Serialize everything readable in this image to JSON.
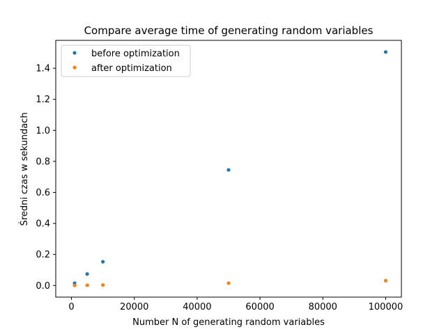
{
  "chart_data": {
    "type": "scatter",
    "title": "Compare average time of generating random variables",
    "xlabel": "Number N of generating random variables",
    "ylabel": "Średni czas w sekundach",
    "xlim": [
      -5000,
      105000
    ],
    "ylim": [
      -0.075,
      1.58
    ],
    "x_ticks": [
      0,
      20000,
      40000,
      60000,
      80000,
      100000
    ],
    "y_ticks": [
      0.0,
      0.2,
      0.4,
      0.6,
      0.8,
      1.0,
      1.2,
      1.4
    ],
    "grid": false,
    "legend_position": "upper-left",
    "series": [
      {
        "name": "before optimization",
        "color": "#1f77b4",
        "x": [
          1000,
          5000,
          10000,
          50000,
          100000
        ],
        "y": [
          0.015,
          0.074,
          0.153,
          0.745,
          1.505
        ]
      },
      {
        "name": "after optimization",
        "color": "#ff7f0e",
        "x": [
          1000,
          5000,
          10000,
          50000,
          100000
        ],
        "y": [
          0.0003,
          0.0015,
          0.003,
          0.015,
          0.031
        ]
      }
    ]
  }
}
